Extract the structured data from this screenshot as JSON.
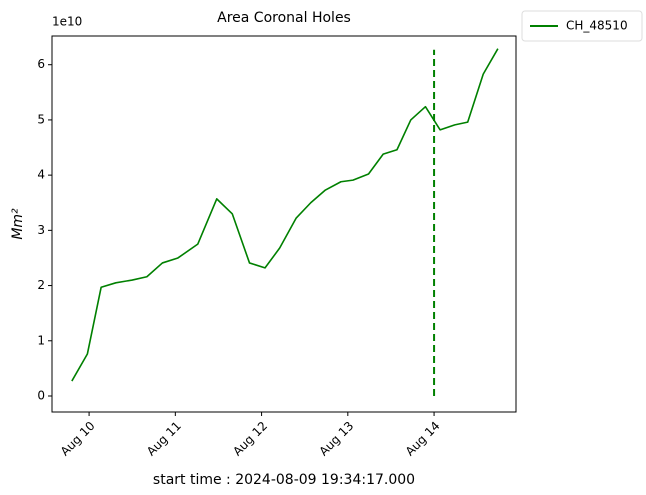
{
  "chart_data": {
    "type": "line",
    "title": "Area Coronal Holes",
    "x_label": "start time : 2024-08-09 19:34:17.000",
    "y_label": "Mm²",
    "y_offset_label": "1e10",
    "x": [
      9.8,
      9.98,
      10.14,
      10.31,
      10.5,
      10.67,
      10.85,
      11.03,
      11.26,
      11.48,
      11.66,
      11.86,
      12.04,
      12.21,
      12.4,
      12.57,
      12.74,
      12.92,
      13.06,
      13.24,
      13.41,
      13.57,
      13.73,
      13.9,
      14.07,
      14.24,
      14.39,
      14.57,
      14.74
    ],
    "series": [
      {
        "name": "CH_48510",
        "color": "#008000",
        "values": [
          0.27,
          0.76,
          1.97,
          2.05,
          2.1,
          2.16,
          2.41,
          2.5,
          2.75,
          3.57,
          3.3,
          2.41,
          2.32,
          2.68,
          3.22,
          3.5,
          3.73,
          3.88,
          3.91,
          4.02,
          4.38,
          4.46,
          5.0,
          5.24,
          4.82,
          4.91,
          4.96,
          5.83,
          6.29
        ]
      }
    ],
    "vline": {
      "x": 14,
      "ymin": 0,
      "ymax": 6.27,
      "color": "#008000"
    },
    "xlim": [
      9.57,
      14.95
    ],
    "xticks": [
      {
        "value": 10,
        "label": "Aug 10"
      },
      {
        "value": 11,
        "label": "Aug 11"
      },
      {
        "value": 12,
        "label": "Aug 12"
      },
      {
        "value": 13,
        "label": "Aug 13"
      },
      {
        "value": 14,
        "label": "Aug 14"
      }
    ],
    "ylim": [
      -0.29,
      6.52
    ],
    "yticks": [
      0,
      1,
      2,
      3,
      4,
      5,
      6
    ],
    "grid": false,
    "legend": "outside-upper-right"
  }
}
